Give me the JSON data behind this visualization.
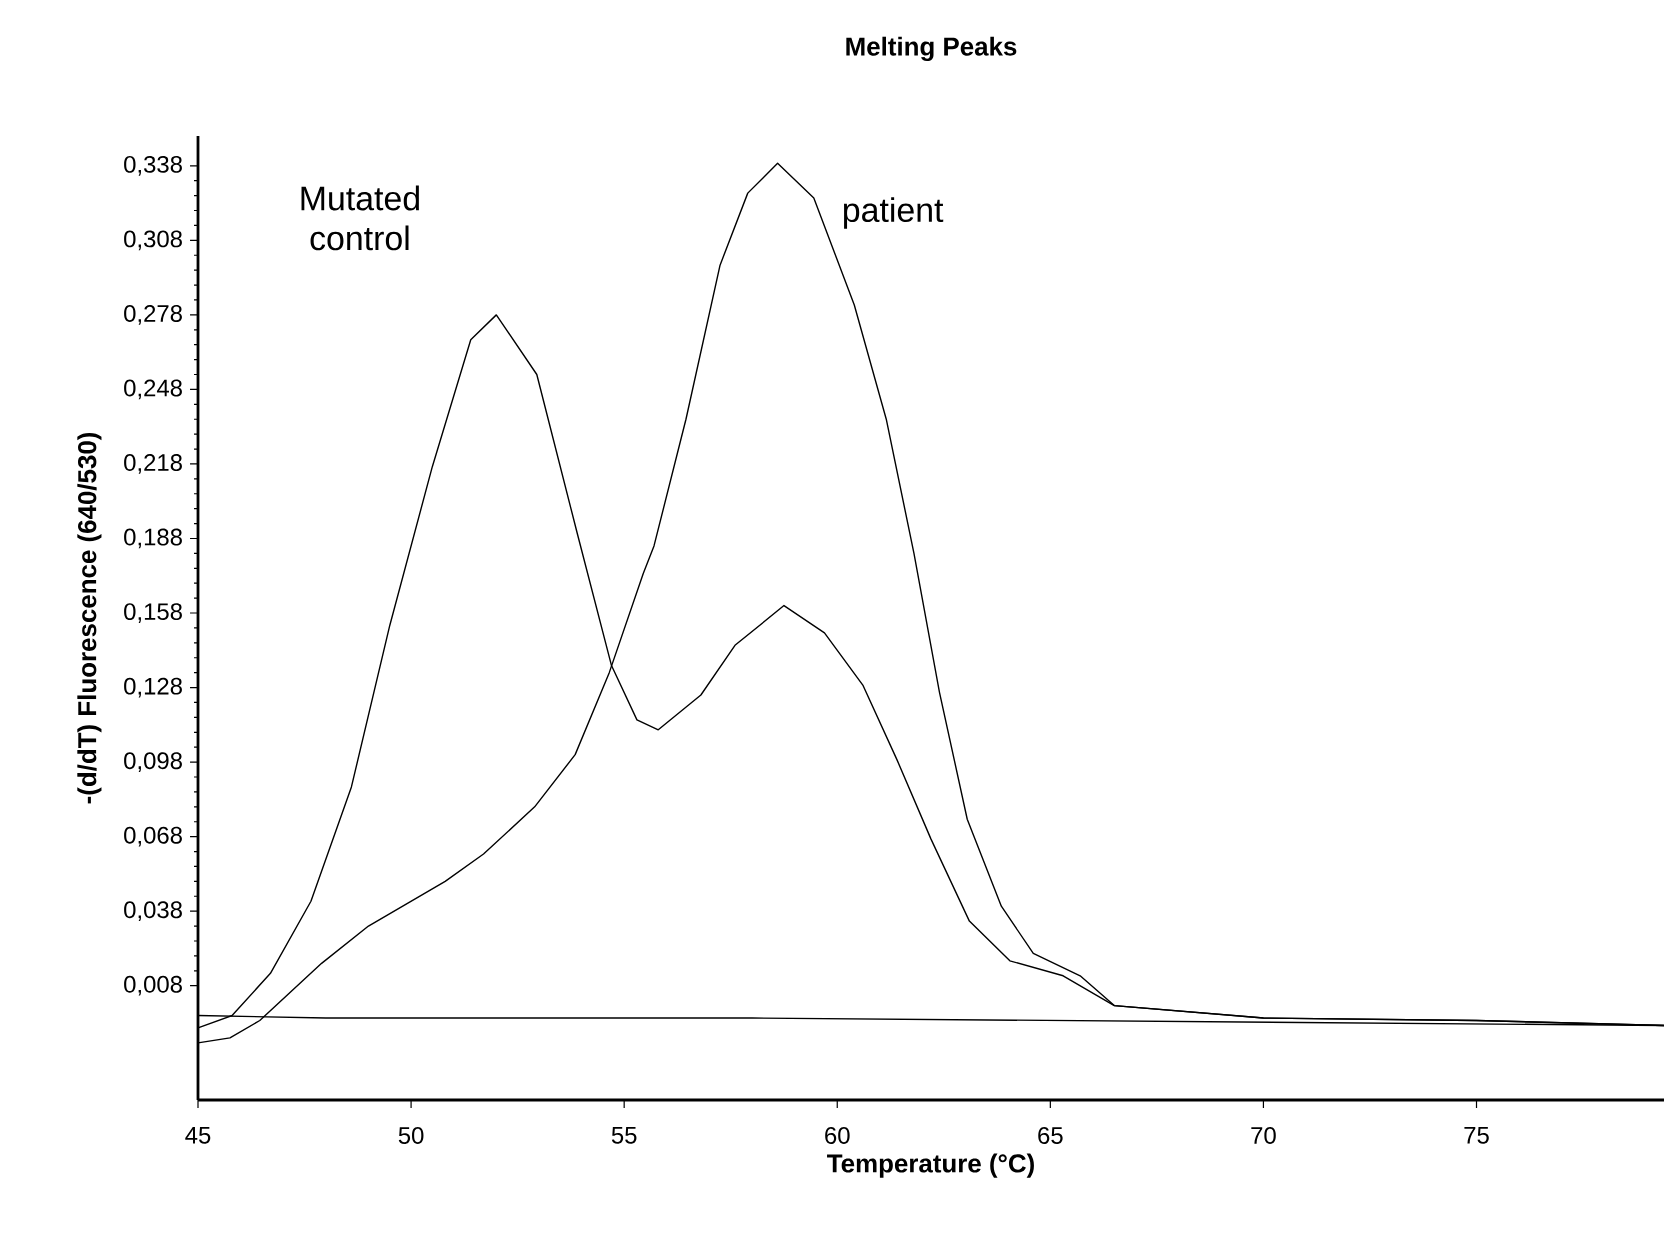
{
  "chart_data": {
    "type": "line",
    "title": "Melting Peaks",
    "xlabel": "Temperature (°C)",
    "ylabel": "-(d/dT) Fluorescence (640/530)",
    "xlim": [
      45,
      79.4
    ],
    "ylim": [
      -0.038,
      0.35
    ],
    "xticks": [
      45,
      50,
      55,
      60,
      65,
      70,
      75
    ],
    "yticks": [
      {
        "value": 0.008,
        "label": "0,008"
      },
      {
        "value": 0.038,
        "label": "0,038"
      },
      {
        "value": 0.068,
        "label": "0,068"
      },
      {
        "value": 0.098,
        "label": "0,098"
      },
      {
        "value": 0.128,
        "label": "0,128"
      },
      {
        "value": 0.158,
        "label": "0,158"
      },
      {
        "value": 0.188,
        "label": "0,188"
      },
      {
        "value": 0.218,
        "label": "0,218"
      },
      {
        "value": 0.248,
        "label": "0,248"
      },
      {
        "value": 0.278,
        "label": "0,278"
      },
      {
        "value": 0.308,
        "label": "0,308"
      },
      {
        "value": 0.338,
        "label": "0,338"
      }
    ],
    "legend": false,
    "grid": false,
    "line_style": "solid",
    "marker": "none",
    "series": [
      {
        "name": "Mutated control",
        "color": "#000000",
        "x": [
          45.0,
          45.8,
          46.7,
          47.65,
          48.6,
          49.5,
          50.5,
          51.4,
          52.0,
          52.95,
          53.9,
          54.7,
          55.3,
          55.8,
          56.8,
          57.6,
          58.75,
          59.7,
          60.6,
          61.4,
          62.2,
          63.1,
          64.05,
          65.3,
          66.5,
          70,
          75,
          79.4
        ],
        "values": [
          -0.009,
          -0.004,
          0.013,
          0.042,
          0.088,
          0.153,
          0.217,
          0.268,
          0.278,
          0.254,
          0.19,
          0.137,
          0.115,
          0.111,
          0.125,
          0.145,
          0.161,
          0.15,
          0.129,
          0.099,
          0.067,
          0.034,
          0.018,
          0.012,
          0.0,
          -0.005,
          -0.006,
          -0.008
        ]
      },
      {
        "name": "patient",
        "color": "#000000",
        "x": [
          45.0,
          45.75,
          46.45,
          47.9,
          49.0,
          50.8,
          51.7,
          52.9,
          53.85,
          54.65,
          55.45,
          55.7,
          56.45,
          57.25,
          57.9,
          58.6,
          59.45,
          60.4,
          61.15,
          61.8,
          62.4,
          63.05,
          63.85,
          64.6,
          65.7,
          66.5,
          70,
          75,
          79.4
        ],
        "values": [
          -0.015,
          -0.013,
          -0.006,
          0.017,
          0.032,
          0.05,
          0.061,
          0.08,
          0.101,
          0.134,
          0.174,
          0.185,
          0.236,
          0.298,
          0.327,
          0.339,
          0.325,
          0.282,
          0.236,
          0.182,
          0.126,
          0.075,
          0.04,
          0.021,
          0.012,
          0.0,
          -0.005,
          -0.006,
          -0.008
        ]
      },
      {
        "color": "#000000",
        "x": [
          45.0,
          48.0,
          58.0,
          79.4
        ],
        "values": [
          -0.004,
          -0.005,
          -0.005,
          -0.008
        ]
      }
    ]
  }
}
